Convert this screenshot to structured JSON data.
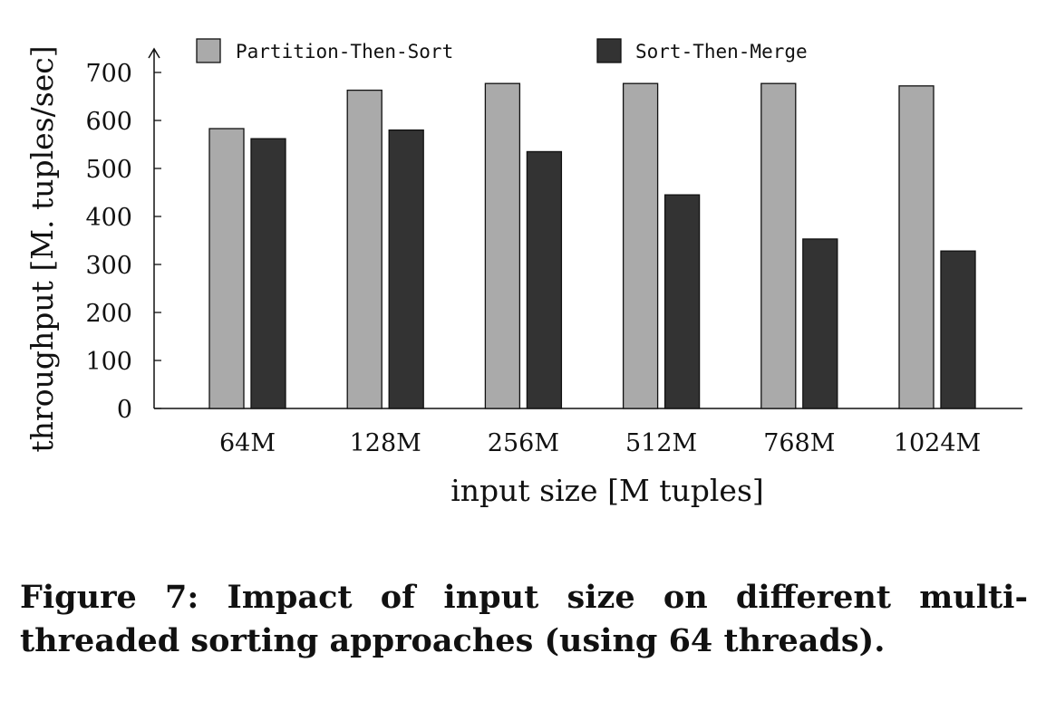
{
  "chart_data": {
    "type": "bar",
    "categories": [
      "64M",
      "128M",
      "256M",
      "512M",
      "768M",
      "1024M"
    ],
    "series": [
      {
        "name": "Partition-Then-Sort",
        "values": [
          583,
          663,
          677,
          677,
          677,
          672
        ],
        "color": "#aaaaaa"
      },
      {
        "name": "Sort-Then-Merge",
        "values": [
          562,
          580,
          535,
          445,
          353,
          328
        ],
        "color": "#333333"
      }
    ],
    "xlabel": "input size [M tuples]",
    "ylabel": "throughput [M. tuples/sec]",
    "ylim": [
      0,
      700
    ],
    "yticks": [
      0,
      100,
      200,
      300,
      400,
      500,
      600,
      700
    ],
    "grid": false,
    "legend_position": "top"
  },
  "caption": "Figure 7: Impact of input size on different multi-threaded sorting approaches (using 64 threads)."
}
